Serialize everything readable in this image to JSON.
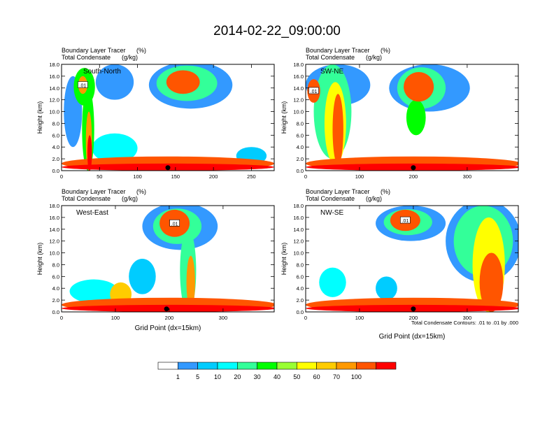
{
  "main_title": "2014-02-22_09:00:00",
  "left_string_1": "Boundary Layer Tracer",
  "left_string_2": "Total Condensate",
  "right_string_1": "(%)",
  "right_string_2": "(g/kg)",
  "y_axis_label": "Height (km)",
  "x_axis_label": "Grid Point (dx=15km)",
  "contour_info": "Total Condensate Contours: .01 to .01 by .000",
  "y_ticks": [
    "0.0",
    "2.0",
    "4.0",
    "6.0",
    "8.0",
    "10.0",
    "12.0",
    "14.0",
    "16.0",
    "18.0"
  ],
  "contour_label": ".01",
  "colors": {
    "c0": "#ffffff",
    "c1": "#3399ff",
    "c2": "#00ccff",
    "c3": "#00ffff",
    "c4": "#33ff99",
    "c5": "#00ff00",
    "c6": "#99ff33",
    "c7": "#ffff00",
    "c8": "#ffcc00",
    "c9": "#ff9900",
    "c10": "#ff5500",
    "c11": "#ff0000"
  },
  "colorbar": {
    "labels": [
      "1",
      "5",
      "10",
      "20",
      "30",
      "40",
      "50",
      "60",
      "70",
      "100"
    ]
  },
  "chart_data": [
    {
      "type": "heatmap",
      "title": "South-North",
      "xlim": [
        0,
        280
      ],
      "x_ticks": [
        "0",
        "50",
        "100",
        "150",
        "200",
        "250"
      ],
      "x_tick_values": [
        0,
        50,
        100,
        150,
        200,
        250
      ],
      "ylim": [
        0,
        18
      ],
      "surface_point_x": 140,
      "blobs": [
        {
          "x": 30,
          "y": 14.2,
          "rx": 14,
          "ry": 3.2,
          "level": 5
        },
        {
          "x": 28,
          "y": 14.5,
          "rx": 6,
          "ry": 1.5,
          "level": 9
        },
        {
          "x": 35,
          "y": 7,
          "rx": 8,
          "ry": 7,
          "level": 5
        },
        {
          "x": 36,
          "y": 5,
          "rx": 4,
          "ry": 5,
          "level": 9
        },
        {
          "x": 37,
          "y": 3,
          "rx": 3,
          "ry": 3,
          "level": 11
        },
        {
          "x": 15,
          "y": 10,
          "rx": 12,
          "ry": 6,
          "level": 1
        },
        {
          "x": 70,
          "y": 15,
          "rx": 25,
          "ry": 3,
          "level": 1
        },
        {
          "x": 170,
          "y": 14.5,
          "rx": 55,
          "ry": 4,
          "level": 1
        },
        {
          "x": 165,
          "y": 14.8,
          "rx": 40,
          "ry": 3,
          "level": 4
        },
        {
          "x": 160,
          "y": 15,
          "rx": 22,
          "ry": 2,
          "level": 10
        },
        {
          "x": 70,
          "y": 3.8,
          "rx": 30,
          "ry": 2.5,
          "level": 3
        },
        {
          "x": 140,
          "y": 1.2,
          "rx": 140,
          "ry": 1.2,
          "level": 10
        },
        {
          "x": 140,
          "y": 0.6,
          "rx": 140,
          "ry": 0.6,
          "level": 11
        },
        {
          "x": 250,
          "y": 2.5,
          "rx": 20,
          "ry": 1.5,
          "level": 2
        }
      ]
    },
    {
      "type": "heatmap",
      "title": "SW-NE",
      "xlim": [
        0,
        395
      ],
      "x_ticks": [
        "0",
        "100",
        "200",
        "300"
      ],
      "x_tick_values": [
        0,
        100,
        200,
        300
      ],
      "ylim": [
        0,
        18
      ],
      "surface_point_x": 200,
      "blobs": [
        {
          "x": 60,
          "y": 14.5,
          "rx": 60,
          "ry": 3.5,
          "level": 1
        },
        {
          "x": 50,
          "y": 10,
          "rx": 35,
          "ry": 8,
          "level": 4
        },
        {
          "x": 55,
          "y": 8,
          "rx": 20,
          "ry": 7,
          "level": 7
        },
        {
          "x": 60,
          "y": 7,
          "rx": 10,
          "ry": 6,
          "level": 10
        },
        {
          "x": 15,
          "y": 13.5,
          "rx": 12,
          "ry": 2,
          "level": 10
        },
        {
          "x": 230,
          "y": 14,
          "rx": 75,
          "ry": 4,
          "level": 1
        },
        {
          "x": 215,
          "y": 14,
          "rx": 45,
          "ry": 3.5,
          "level": 4
        },
        {
          "x": 210,
          "y": 14.2,
          "rx": 28,
          "ry": 2.5,
          "level": 10
        },
        {
          "x": 205,
          "y": 9,
          "rx": 18,
          "ry": 3,
          "level": 5
        },
        {
          "x": 200,
          "y": 1.2,
          "rx": 200,
          "ry": 1.2,
          "level": 10
        },
        {
          "x": 200,
          "y": 0.6,
          "rx": 200,
          "ry": 0.6,
          "level": 11
        }
      ]
    },
    {
      "type": "heatmap",
      "title": "West-East",
      "xlim": [
        0,
        395
      ],
      "x_ticks": [
        "0",
        "100",
        "200",
        "300"
      ],
      "x_tick_values": [
        0,
        100,
        200,
        300
      ],
      "ylim": [
        0,
        18
      ],
      "surface_point_x": 195,
      "blobs": [
        {
          "x": 220,
          "y": 14.5,
          "rx": 70,
          "ry": 4,
          "level": 1
        },
        {
          "x": 215,
          "y": 14.5,
          "rx": 45,
          "ry": 3,
          "level": 4
        },
        {
          "x": 210,
          "y": 15,
          "rx": 28,
          "ry": 2.3,
          "level": 10
        },
        {
          "x": 235,
          "y": 7,
          "rx": 15,
          "ry": 7,
          "level": 4
        },
        {
          "x": 240,
          "y": 5,
          "rx": 8,
          "ry": 4.5,
          "level": 9
        },
        {
          "x": 150,
          "y": 6,
          "rx": 25,
          "ry": 3,
          "level": 2
        },
        {
          "x": 60,
          "y": 3.5,
          "rx": 45,
          "ry": 2,
          "level": 3
        },
        {
          "x": 110,
          "y": 3,
          "rx": 20,
          "ry": 2,
          "level": 8
        },
        {
          "x": 200,
          "y": 1.2,
          "rx": 200,
          "ry": 1.2,
          "level": 10
        },
        {
          "x": 200,
          "y": 0.6,
          "rx": 200,
          "ry": 0.6,
          "level": 11
        }
      ]
    },
    {
      "type": "heatmap",
      "title": "NW-SE",
      "xlim": [
        0,
        395
      ],
      "x_ticks": [
        "0",
        "100",
        "200",
        "300"
      ],
      "x_tick_values": [
        0,
        100,
        200,
        300
      ],
      "ylim": [
        0,
        18
      ],
      "surface_point_x": 200,
      "blobs": [
        {
          "x": 195,
          "y": 15,
          "rx": 65,
          "ry": 3,
          "level": 1
        },
        {
          "x": 190,
          "y": 15.2,
          "rx": 45,
          "ry": 2.2,
          "level": 4
        },
        {
          "x": 185,
          "y": 15.5,
          "rx": 28,
          "ry": 1.8,
          "level": 10
        },
        {
          "x": 330,
          "y": 12,
          "rx": 70,
          "ry": 7,
          "level": 1
        },
        {
          "x": 330,
          "y": 12,
          "rx": 55,
          "ry": 6,
          "level": 4
        },
        {
          "x": 340,
          "y": 8,
          "rx": 30,
          "ry": 8,
          "level": 7
        },
        {
          "x": 345,
          "y": 5,
          "rx": 22,
          "ry": 5,
          "level": 10
        },
        {
          "x": 50,
          "y": 5,
          "rx": 25,
          "ry": 2.5,
          "level": 3
        },
        {
          "x": 150,
          "y": 4,
          "rx": 20,
          "ry": 2,
          "level": 2
        },
        {
          "x": 200,
          "y": 1.2,
          "rx": 200,
          "ry": 1.2,
          "level": 10
        },
        {
          "x": 200,
          "y": 0.6,
          "rx": 200,
          "ry": 0.6,
          "level": 11
        }
      ]
    }
  ]
}
